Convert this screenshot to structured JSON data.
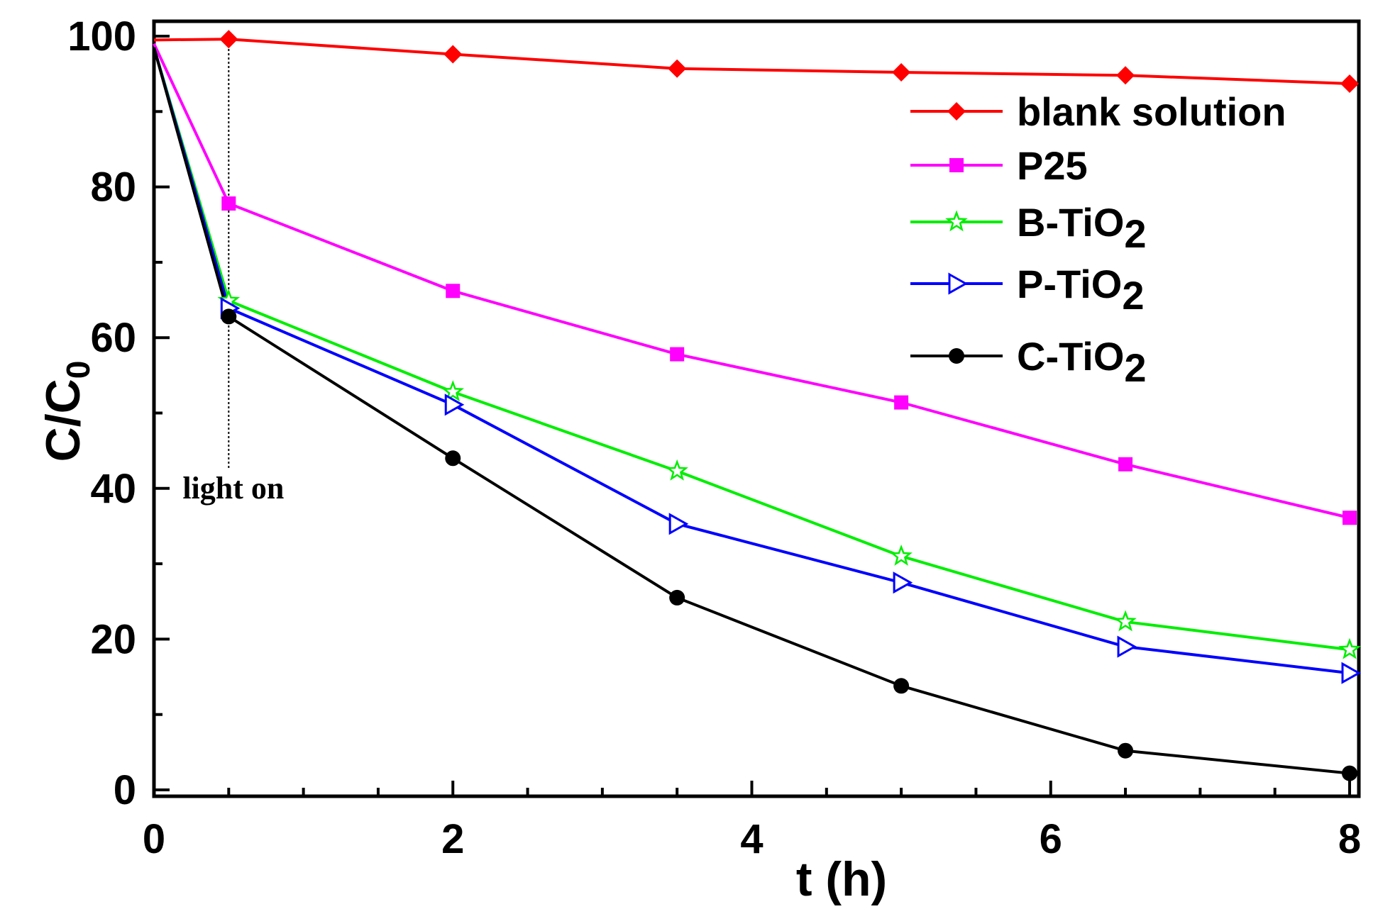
{
  "chart_data": {
    "type": "line",
    "title": "",
    "xlabel": "t (h)",
    "ylabel_main": "C/C",
    "ylabel_sub": "0",
    "xlim": [
      0,
      8
    ],
    "ylim": [
      0,
      100
    ],
    "xticks": [
      "0",
      "2",
      "4",
      "6",
      "8"
    ],
    "yticks": [
      "0",
      "20",
      "40",
      "60",
      "80",
      "100"
    ],
    "grid": false,
    "legend_position": "top-right",
    "x": [
      0,
      0.5,
      2,
      3.5,
      5,
      6.5,
      8
    ],
    "series": [
      {
        "name": "blank solution",
        "label_main": "blank solution",
        "label_sub": "",
        "color": "#ff0000",
        "marker": "diamond",
        "values": [
          99.5,
          99.6,
          97.6,
          95.7,
          95.2,
          94.8,
          93.7
        ]
      },
      {
        "name": "P25",
        "label_main": "P25",
        "label_sub": "",
        "color": "#ff00ff",
        "marker": "square",
        "values": [
          99.0,
          77.8,
          66.2,
          57.8,
          51.4,
          43.2,
          36.1
        ]
      },
      {
        "name": "B-TiO2",
        "label_main": "B-TiO",
        "label_sub": "2",
        "color": "#00ee00",
        "marker": "star-open",
        "values": [
          98.5,
          64.9,
          52.8,
          42.3,
          31.0,
          22.3,
          18.6
        ]
      },
      {
        "name": "P-TiO2",
        "label_main": "P-TiO",
        "label_sub": "2",
        "color": "#0000ff",
        "marker": "triangle-right-open",
        "values": [
          98.5,
          63.9,
          51.1,
          35.3,
          27.5,
          19.0,
          15.5
        ]
      },
      {
        "name": "C-TiO2",
        "label_main": "C-TiO",
        "label_sub": "2",
        "color": "#000000",
        "marker": "circle",
        "values": [
          98.5,
          62.8,
          44.0,
          25.5,
          13.8,
          5.2,
          2.2
        ]
      }
    ],
    "annotations": [
      {
        "text": "light on",
        "x": 0.5,
        "y": 40
      }
    ]
  }
}
